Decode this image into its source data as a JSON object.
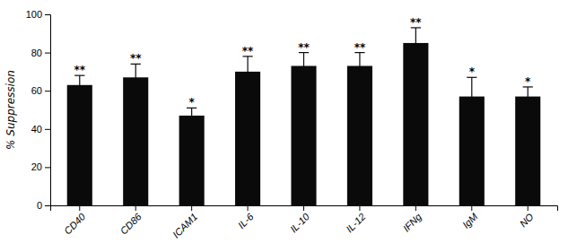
{
  "chart_data": {
    "type": "bar",
    "ylabel": "% Suppression",
    "categories": [
      "CD40",
      "CD86",
      "ICAM1",
      "IL-6",
      "IL-10",
      "IL-12",
      "IFNg",
      "IgM",
      "NO"
    ],
    "values": [
      63,
      67,
      47,
      70,
      73,
      73,
      85,
      57,
      57
    ],
    "errors": [
      5,
      7,
      4,
      8,
      7,
      7,
      8,
      10,
      5
    ],
    "annotations": [
      "**",
      "**",
      "*",
      "**",
      "**",
      "**",
      "**",
      "*",
      "*"
    ],
    "color": "#0a0a0a",
    "ylim": [
      0,
      100
    ],
    "yticks": [
      0,
      20,
      40,
      60,
      80,
      100
    ],
    "grid": false
  }
}
